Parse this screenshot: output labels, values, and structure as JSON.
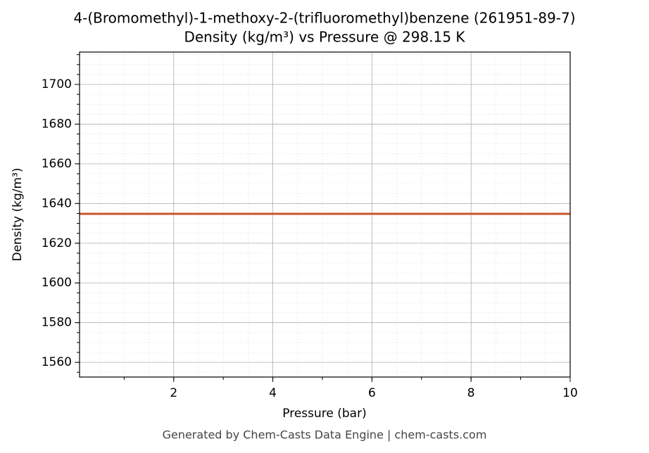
{
  "chart_data": {
    "type": "line",
    "title": "4-(Bromomethyl)-1-methoxy-2-(trifluoromethyl)benzene (261951-89-7)",
    "subtitle": "Density (kg/m³) vs Pressure @ 298.15 K",
    "x_label": "Pressure (bar)",
    "y_label": "Density (kg/m³)",
    "footer": "Generated by Chem-Casts Data Engine | chem-casts.com",
    "x": [
      0.1,
      10
    ],
    "series": [
      {
        "name": "Density",
        "color": "#c8552b",
        "values": [
          1634.8,
          1634.8
        ]
      }
    ],
    "xlim": [
      0.1,
      10
    ],
    "xticks": [
      2,
      4,
      6,
      8,
      10
    ],
    "ylim": [
      1552.6,
      1716.3
    ],
    "yticks": [
      1560,
      1580,
      1600,
      1620,
      1640,
      1660,
      1680,
      1700
    ],
    "grid": true
  }
}
